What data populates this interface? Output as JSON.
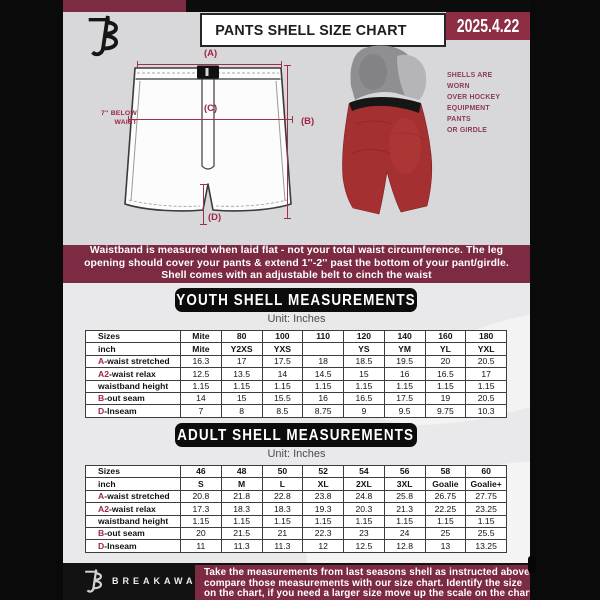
{
  "header": {
    "title": "PANTS SHELL SIZE CHART",
    "date": "2025.4.22"
  },
  "diagram": {
    "label_a": "(A)",
    "label_b": "(B)",
    "label_c": "(C)",
    "label_d": "(D)",
    "below_waist_lines": [
      "7'' BELOW",
      "WAIST"
    ],
    "photo_note_lines": [
      "SHELLS ARE WORN",
      "OVER HOCKEY",
      "EQUIPMENT PANTS",
      "OR GIRDLE"
    ]
  },
  "notice_band": {
    "lines": [
      "Waistband is measured when laid flat - not your total waist circumference. The leg",
      "opening should cover your pants & extend 1''-2'' past the bottom of your pant/girdle.",
      "Shell comes with an adjustable belt to cinch the waist"
    ]
  },
  "sections": {
    "youth": {
      "heading": "YOUTH SHELL MEASUREMENTS",
      "unit_label": "Unit: Inches",
      "table": {
        "rows": [
          {
            "prefix": "",
            "label": "Sizes",
            "values": [
              "Mite",
              "80",
              "100",
              "110",
              "120",
              "140",
              "160",
              "180"
            ]
          },
          {
            "prefix": "",
            "label": "inch",
            "values": [
              "Mite",
              "Y2XS",
              "YXS",
              "",
              "YS",
              "YM",
              "YL",
              "YXL"
            ]
          },
          {
            "prefix": "A",
            "label": "-waist stretched",
            "values": [
              "16.3",
              "17",
              "17.5",
              "18",
              "18.5",
              "19.5",
              "20",
              "20.5"
            ]
          },
          {
            "prefix": "A2",
            "label": "-waist relax",
            "values": [
              "12.5",
              "13.5",
              "14",
              "14.5",
              "15",
              "16",
              "16.5",
              "17"
            ]
          },
          {
            "prefix": "",
            "label": "waistband height",
            "values": [
              "1.15",
              "1.15",
              "1.15",
              "1.15",
              "1.15",
              "1.15",
              "1.15",
              "1.15"
            ]
          },
          {
            "prefix": "B",
            "label": "-out seam",
            "values": [
              "14",
              "15",
              "15.5",
              "16",
              "16.5",
              "17.5",
              "19",
              "20.5"
            ]
          },
          {
            "prefix": "D",
            "label": "-Inseam",
            "values": [
              "7",
              "8",
              "8.5",
              "8.75",
              "9",
              "9.5",
              "9.75",
              "10.3"
            ]
          }
        ]
      }
    },
    "adult": {
      "heading": "ADULT SHELL MEASUREMENTS",
      "unit_label": "Unit: Inches",
      "table": {
        "rows": [
          {
            "prefix": "",
            "label": "Sizes",
            "values": [
              "46",
              "48",
              "50",
              "52",
              "54",
              "56",
              "58",
              "60"
            ]
          },
          {
            "prefix": "",
            "label": "inch",
            "values": [
              "S",
              "M",
              "L",
              "XL",
              "2XL",
              "3XL",
              "Goalie",
              "Goalie+"
            ]
          },
          {
            "prefix": "A",
            "label": "-waist stretched",
            "values": [
              "20.8",
              "21.8",
              "22.8",
              "23.8",
              "24.8",
              "25.8",
              "26.75",
              "27.75"
            ]
          },
          {
            "prefix": "A2",
            "label": "-waist relax",
            "values": [
              "17.3",
              "18.3",
              "18.3",
              "19.3",
              "20.3",
              "21.3",
              "22.25",
              "23.25"
            ]
          },
          {
            "prefix": "",
            "label": "waistband height",
            "values": [
              "1.15",
              "1.15",
              "1.15",
              "1.15",
              "1.15",
              "1.15",
              "1.15",
              "1.15"
            ]
          },
          {
            "prefix": "B",
            "label": "-out seam",
            "values": [
              "20",
              "21.5",
              "21",
              "22.3",
              "23",
              "24",
              "25",
              "25.5"
            ]
          },
          {
            "prefix": "D",
            "label": "-Inseam",
            "values": [
              "11",
              "11.3",
              "11.3",
              "12",
              "12.5",
              "12.8",
              "13",
              "13.25"
            ]
          }
        ]
      }
    }
  },
  "footer": {
    "brand": "BREAKAWAY",
    "note_lines": [
      "Take the measurements from last seasons shell as instructed above",
      "compare those measurements  with our size chart. Identify the size",
      "on the chart, if you need a larger size move up the scale on the chart"
    ]
  },
  "colors": {
    "maroon": "#7d2a43",
    "date_box_maroon": "#8d2e45",
    "accent_red": "#9c2742",
    "shell_red": "#a53031",
    "black": "#0c0c0c",
    "diagram_bg": "#d8d8db",
    "page_bg": "#e9e9eb"
  }
}
